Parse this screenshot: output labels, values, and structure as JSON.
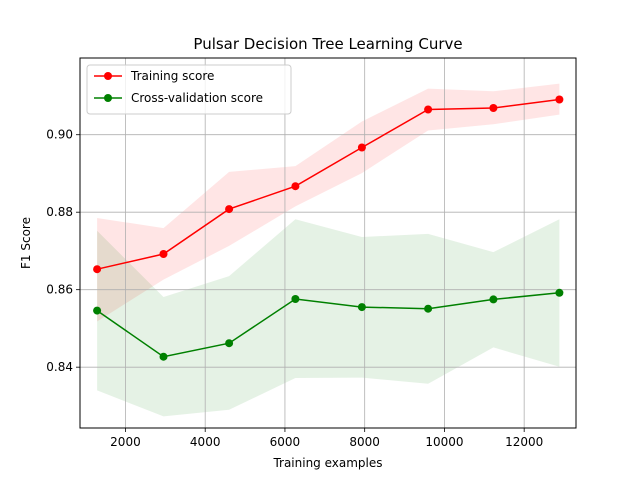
{
  "chart_data": {
    "type": "line",
    "title": "Pulsar Decision Tree Learning Curve",
    "xlabel": "Training examples",
    "ylabel": "F1 Score",
    "xlim": [
      860,
      13300
    ],
    "ylim": [
      0.8243,
      0.9198
    ],
    "xticks": [
      2000,
      4000,
      6000,
      8000,
      10000,
      12000
    ],
    "yticks": [
      0.84,
      0.86,
      0.88,
      0.9
    ],
    "ytick_labels": [
      "0.84",
      "0.86",
      "0.88",
      "0.90"
    ],
    "grid": true,
    "legend_position": "upper left",
    "x": [
      1288,
      2955,
      4600,
      6262,
      7931,
      9591,
      11229,
      12884
    ],
    "series": [
      {
        "name": "Training score",
        "color": "#ff0000",
        "band_color": "#ff0000",
        "values": [
          0.8653,
          0.8692,
          0.8808,
          0.8867,
          0.8967,
          0.9065,
          0.9069,
          0.9091
        ],
        "upper": [
          0.8785,
          0.8759,
          0.8904,
          0.8919,
          0.9034,
          0.9119,
          0.9112,
          0.9132
        ],
        "lower": [
          0.8518,
          0.8626,
          0.8713,
          0.8815,
          0.8901,
          0.9011,
          0.9027,
          0.9052
        ]
      },
      {
        "name": "Cross-validation score",
        "color": "#008000",
        "band_color": "#008000",
        "values": [
          0.8546,
          0.8427,
          0.8462,
          0.8576,
          0.8555,
          0.8551,
          0.8575,
          0.8592
        ],
        "upper": [
          0.8752,
          0.8581,
          0.8635,
          0.8782,
          0.8736,
          0.8744,
          0.8697,
          0.8782
        ],
        "lower": [
          0.834,
          0.8273,
          0.829,
          0.8372,
          0.8373,
          0.8357,
          0.8451,
          0.8401
        ]
      }
    ]
  }
}
